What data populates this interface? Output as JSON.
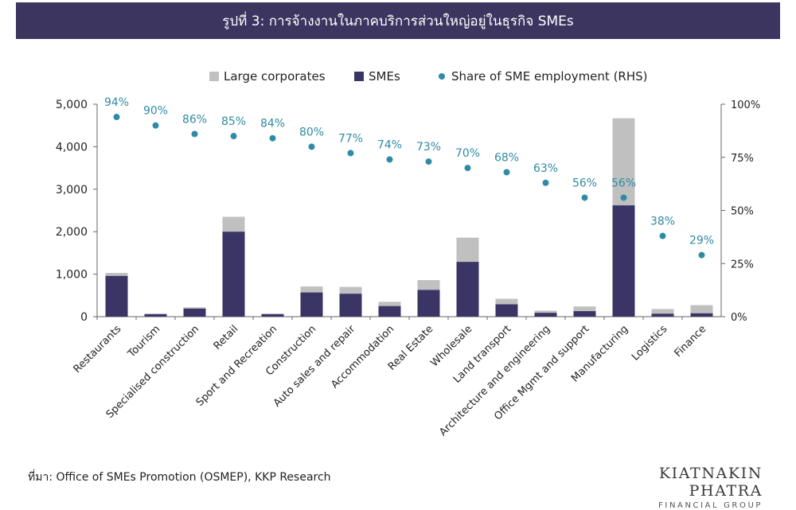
{
  "header": {
    "title": "รูปที่ 3: การจ้างงานในภาคบริการส่วนใหญ่อยู่ในธุรกิจ SMEs"
  },
  "footer": {
    "source": "ที่มา: Office of SMEs Promotion (OSMEP), KKP Research",
    "logo_main": "KIATNAKIN PHATRA",
    "logo_sub": "FINANCIAL GROUP"
  },
  "colors": {
    "sme": "#3b3566",
    "large": "#c0c0c0",
    "share": "#2e8ba3",
    "header_bg": "#3c3560"
  },
  "chart_data": {
    "type": "bar",
    "stacked": true,
    "categories": [
      "Restaurants",
      "Tourism",
      "Specialised construction",
      "Retail",
      "Sport and Recreation",
      "Construction",
      "Auto sales and repair",
      "Accommodation",
      "Real Estate",
      "Wholesale",
      "Land transport",
      "Architecture and engineering",
      "Office Mgmt and support",
      "Manufacturing",
      "Logistics",
      "Finance"
    ],
    "series": [
      {
        "name": "SMEs",
        "type": "bar",
        "axis": "left",
        "values": [
          960,
          60,
          190,
          2000,
          60,
          570,
          540,
          250,
          630,
          1290,
          290,
          90,
          130,
          2620,
          70,
          80
        ]
      },
      {
        "name": "Large corporates",
        "type": "bar",
        "axis": "left",
        "values": [
          70,
          10,
          30,
          350,
          10,
          140,
          160,
          100,
          230,
          570,
          130,
          50,
          110,
          2050,
          110,
          190
        ]
      },
      {
        "name": "Share of SME employment (RHS)",
        "type": "scatter",
        "axis": "right",
        "values": [
          94,
          90,
          86,
          85,
          84,
          80,
          77,
          74,
          73,
          70,
          68,
          63,
          56,
          56,
          38,
          29
        ],
        "labels": [
          "94%",
          "90%",
          "86%",
          "85%",
          "84%",
          "80%",
          "77%",
          "74%",
          "73%",
          "70%",
          "68%",
          "63%",
          "56%",
          "56%",
          "38%",
          "29%"
        ]
      }
    ],
    "y_left": {
      "ylim": [
        0,
        5000
      ],
      "ticks": [
        0,
        1000,
        2000,
        3000,
        4000,
        5000
      ],
      "tick_labels": [
        "0",
        "1,000",
        "2,000",
        "3,000",
        "4,000",
        "5,000"
      ]
    },
    "y_right": {
      "ylim": [
        0,
        100
      ],
      "ticks": [
        0,
        25,
        50,
        75,
        100
      ],
      "tick_labels": [
        "0%",
        "25%",
        "50%",
        "75%",
        "100%"
      ]
    },
    "legend": {
      "position": "top",
      "items": [
        "Large corporates",
        "SMEs",
        "Share of SME employment (RHS)"
      ]
    },
    "grid": false
  }
}
